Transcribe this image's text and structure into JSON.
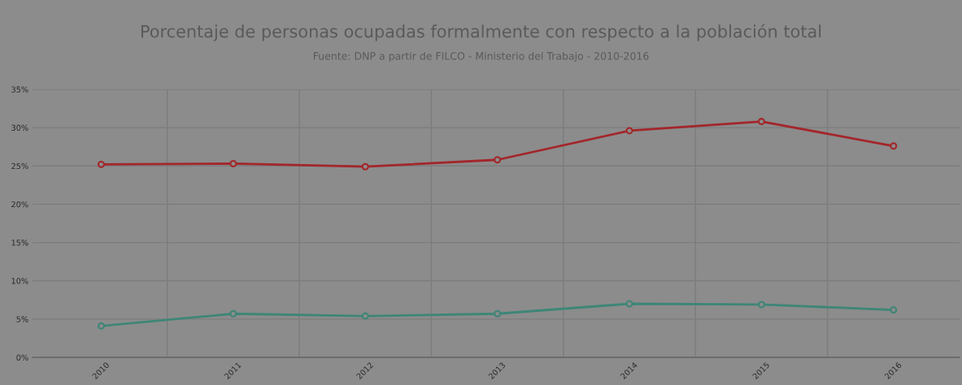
{
  "chart_data": {
    "type": "line",
    "title": "Porcentaje de personas ocupadas formalmente con respecto a la población total",
    "subtitle": "Fuente: DNP a partir de FILCO - Ministerio del Trabajo - 2010-2016",
    "categories": [
      "2010",
      "2011",
      "2012",
      "2013",
      "2014",
      "2015",
      "2016"
    ],
    "series": [
      {
        "color": "#a3262b",
        "values": [
          25.2,
          25.3,
          24.9,
          25.8,
          29.6,
          30.8,
          27.6
        ]
      },
      {
        "color": "#3e8677",
        "values": [
          4.1,
          5.7,
          5.4,
          5.7,
          7.0,
          6.9,
          6.2
        ]
      }
    ],
    "ylim": [
      0,
      35
    ],
    "yticks": [
      {
        "value": 0,
        "label": "0%"
      },
      {
        "value": 5,
        "label": "5%"
      },
      {
        "value": 10,
        "label": "10%"
      },
      {
        "value": 15,
        "label": "15%"
      },
      {
        "value": 20,
        "label": "20%"
      },
      {
        "value": 25,
        "label": "25%"
      },
      {
        "value": 30,
        "label": "30%"
      },
      {
        "value": 35,
        "label": "35%"
      }
    ],
    "grid": true,
    "marker": "circle",
    "line_style": "solid"
  }
}
